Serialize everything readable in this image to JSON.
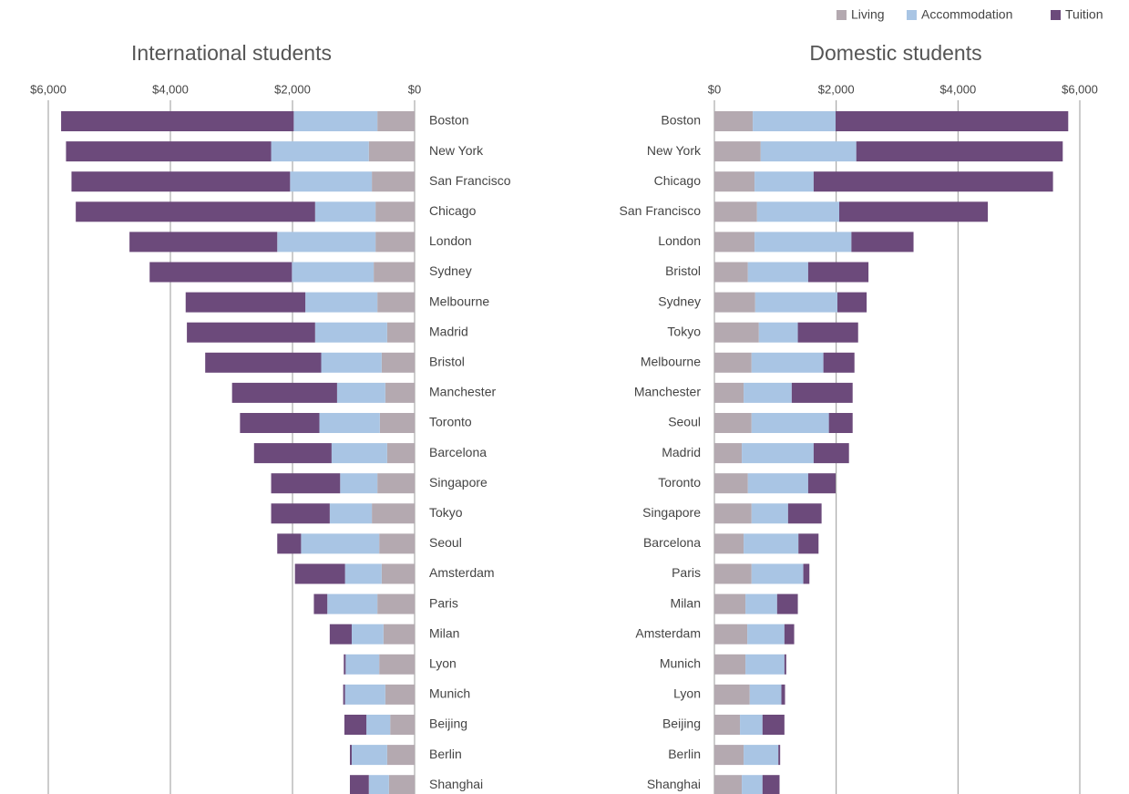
{
  "chart_data": [
    {
      "type": "bar",
      "title": "International students",
      "categories": [
        "Boston",
        "New York",
        "San Francisco",
        "Chicago",
        "London",
        "Sydney",
        "Melbourne",
        "Madrid",
        "Bristol",
        "Manchester",
        "Toronto",
        "Barcelona",
        "Singapore",
        "Tokyo",
        "Seoul",
        "Amsterdam",
        "Paris",
        "Milan",
        "Lyon",
        "Munich",
        "Beijing",
        "Berlin",
        "Shanghai"
      ],
      "series": [
        {
          "name": "Living",
          "color": "#b4a9b0",
          "values": [
            610,
            750,
            700,
            640,
            640,
            670,
            610,
            450,
            540,
            480,
            570,
            450,
            610,
            700,
            580,
            540,
            610,
            510,
            580,
            480,
            400,
            450,
            420
          ]
        },
        {
          "name": "Accommodation",
          "color": "#a9c5e4",
          "values": [
            1370,
            1600,
            1340,
            990,
            1610,
            1340,
            1180,
            1180,
            990,
            790,
            990,
            910,
            610,
            690,
            1280,
            600,
            820,
            520,
            550,
            660,
            390,
            580,
            330
          ]
        },
        {
          "name": "Tuition",
          "color": "#6c4a7b",
          "values": [
            3810,
            3360,
            3580,
            3920,
            2420,
            2330,
            1960,
            2100,
            1900,
            1720,
            1300,
            1270,
            1130,
            960,
            390,
            820,
            220,
            360,
            30,
            30,
            360,
            30,
            310
          ]
        }
      ],
      "xlim": [
        6000,
        0
      ],
      "xticks": [
        {
          "value": 6000,
          "label": "$6,000"
        },
        {
          "value": 4000,
          "label": "$4,000"
        },
        {
          "value": 2000,
          "label": "$2,000"
        },
        {
          "value": 0,
          "label": "$0"
        }
      ],
      "grid": true
    },
    {
      "type": "bar",
      "title": "Domestic students",
      "categories": [
        "Boston",
        "New York",
        "Chicago",
        "San Francisco",
        "London",
        "Bristol",
        "Sydney",
        "Tokyo",
        "Melbourne",
        "Manchester",
        "Seoul",
        "Madrid",
        "Toronto",
        "Singapore",
        "Barcelona",
        "Paris",
        "Milan",
        "Amsterdam",
        "Munich",
        "Lyon",
        "Beijing",
        "Berlin",
        "Shanghai"
      ],
      "series": [
        {
          "name": "Living",
          "color": "#b4a9b0",
          "values": [
            630,
            760,
            660,
            700,
            660,
            550,
            670,
            730,
            610,
            480,
            610,
            450,
            550,
            610,
            480,
            610,
            510,
            540,
            510,
            580,
            420,
            480,
            450
          ]
        },
        {
          "name": "Accommodation",
          "color": "#a9c5e4",
          "values": [
            1360,
            1570,
            970,
            1350,
            1590,
            990,
            1350,
            640,
            1180,
            790,
            1270,
            1180,
            990,
            600,
            900,
            850,
            520,
            610,
            640,
            520,
            370,
            570,
            340
          ]
        },
        {
          "name": "Tuition",
          "color": "#6c4a7b",
          "values": [
            3820,
            3390,
            3930,
            2440,
            1020,
            990,
            480,
            990,
            510,
            1000,
            390,
            580,
            450,
            550,
            330,
            100,
            340,
            160,
            30,
            60,
            360,
            30,
            280
          ]
        }
      ],
      "xlim": [
        0,
        6000
      ],
      "xticks": [
        {
          "value": 0,
          "label": "$0"
        },
        {
          "value": 2000,
          "label": "$2,000"
        },
        {
          "value": 4000,
          "label": "$4,000"
        },
        {
          "value": 6000,
          "label": "$6,000"
        }
      ],
      "grid": true
    }
  ]
}
